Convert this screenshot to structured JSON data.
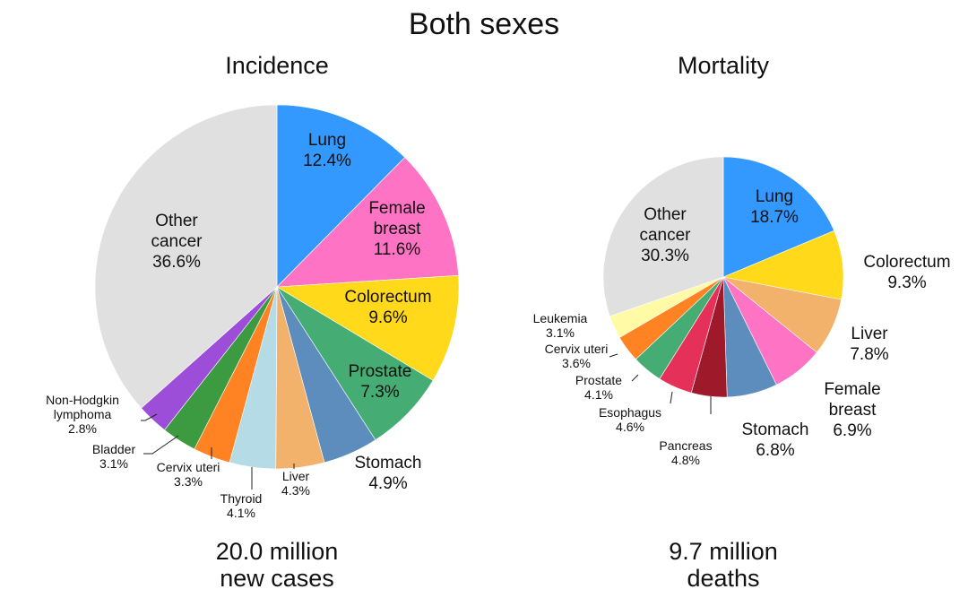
{
  "page": {
    "title": "Both sexes"
  },
  "chart_data": [
    {
      "type": "pie",
      "title": "Incidence",
      "total_line1": "20.0 million",
      "total_line2": "new cases",
      "slices": [
        {
          "label": "Lung",
          "value": 12.4,
          "display": "12.4%",
          "color": "#3399ff"
        },
        {
          "label": "Female breast",
          "value": 11.6,
          "display": "11.6%",
          "color": "#ff73c4"
        },
        {
          "label": "Colorectum",
          "value": 9.6,
          "display": "9.6%",
          "color": "#ffd91a"
        },
        {
          "label": "Prostate",
          "value": 7.3,
          "display": "7.3%",
          "color": "#45ad73"
        },
        {
          "label": "Stomach",
          "value": 4.9,
          "display": "4.9%",
          "color": "#5d8dbd"
        },
        {
          "label": "Liver",
          "value": 4.3,
          "display": "4.3%",
          "color": "#f2b26b"
        },
        {
          "label": "Thyroid",
          "value": 4.1,
          "display": "4.1%",
          "color": "#b5dce6"
        },
        {
          "label": "Cervix uteri",
          "value": 3.3,
          "display": "3.3%",
          "color": "#ff8322"
        },
        {
          "label": "Bladder",
          "value": 3.1,
          "display": "3.1%",
          "color": "#3c9a40"
        },
        {
          "label": "Non-Hodgkin lymphoma",
          "value": 2.8,
          "display": "2.8%",
          "color": "#9d4ed9"
        },
        {
          "label": "Other cancer",
          "value": 36.6,
          "display": "36.6%",
          "color": "#e0e0e0"
        }
      ]
    },
    {
      "type": "pie",
      "title": "Mortality",
      "total_line1": "9.7 million",
      "total_line2": "deaths",
      "slices": [
        {
          "label": "Lung",
          "value": 18.7,
          "display": "18.7%",
          "color": "#3399ff"
        },
        {
          "label": "Colorectum",
          "value": 9.3,
          "display": "9.3%",
          "color": "#ffd91a"
        },
        {
          "label": "Liver",
          "value": 7.8,
          "display": "7.8%",
          "color": "#f2b26b"
        },
        {
          "label": "Female breast",
          "value": 6.9,
          "display": "6.9%",
          "color": "#ff73c4"
        },
        {
          "label": "Stomach",
          "value": 6.8,
          "display": "6.8%",
          "color": "#5d8dbd"
        },
        {
          "label": "Pancreas",
          "value": 4.8,
          "display": "4.8%",
          "color": "#9e1a2a"
        },
        {
          "label": "Esophagus",
          "value": 4.6,
          "display": "4.6%",
          "color": "#e5315a"
        },
        {
          "label": "Prostate",
          "value": 4.1,
          "display": "4.1%",
          "color": "#45ad73"
        },
        {
          "label": "Cervix uteri",
          "value": 3.6,
          "display": "3.6%",
          "color": "#ff8322"
        },
        {
          "label": "Leukemia",
          "value": 3.1,
          "display": "3.1%",
          "color": "#fffaa6"
        },
        {
          "label": "Other cancer",
          "value": 30.3,
          "display": "30.3%",
          "color": "#e0e0e0"
        }
      ]
    }
  ]
}
